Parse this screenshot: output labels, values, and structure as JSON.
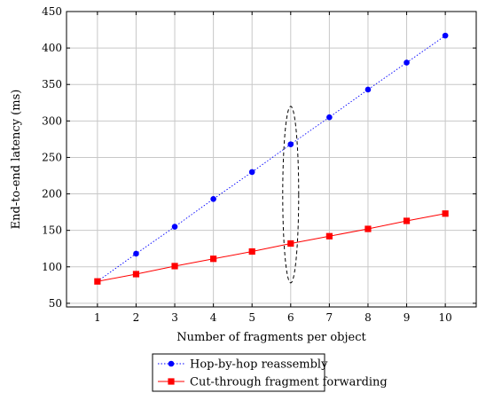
{
  "chart_data": {
    "type": "line",
    "xlabel": "Number of fragments per object",
    "ylabel": "End-to-end latency (ms)",
    "x": [
      1,
      2,
      3,
      4,
      5,
      6,
      7,
      8,
      9,
      10
    ],
    "xticks": [
      "1",
      "2",
      "3",
      "4",
      "5",
      "6",
      "7",
      "8",
      "9",
      "10"
    ],
    "xlim": [
      0.2,
      10.8
    ],
    "yticks": [
      "50",
      "100",
      "150",
      "200",
      "250",
      "300",
      "350",
      "400",
      "450"
    ],
    "ylim": [
      45,
      450
    ],
    "grid": true,
    "legend_position": "bottom-center",
    "series": [
      {
        "name": "Hop-by-hop reassembly",
        "color": "#0000ff",
        "marker": "circle",
        "line_style": "dotted",
        "values": [
          80,
          118,
          155,
          193,
          230,
          268,
          305,
          343,
          380,
          417
        ]
      },
      {
        "name": "Cut-through fragment forwarding",
        "color": "#ff0000",
        "marker": "square",
        "line_style": "solid",
        "values": [
          80,
          90,
          101,
          111,
          121,
          132,
          142,
          152,
          163,
          173
        ]
      }
    ],
    "annotations": [
      {
        "type": "dashed-ellipse",
        "x": 6,
        "y_range": [
          78,
          320
        ]
      }
    ]
  }
}
